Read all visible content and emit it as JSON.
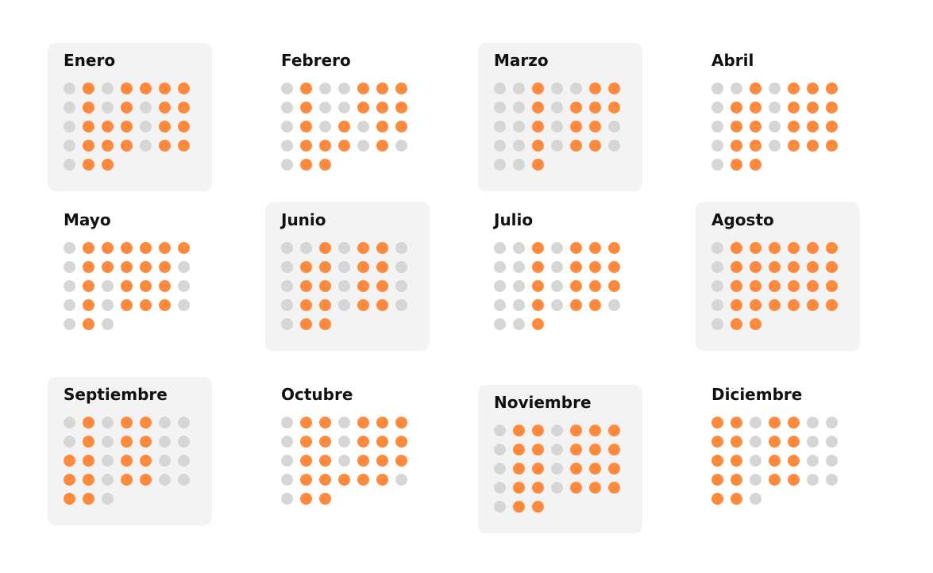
{
  "colors": {
    "active": "#ff8a3d",
    "inactive": "#d6d6d6",
    "panel": "#f3f3f3"
  },
  "months": [
    {
      "name": "Enero",
      "shaded": true,
      "rows": [
        "0101111",
        "0101011",
        "0111011",
        "0111011",
        "011"
      ]
    },
    {
      "name": "Febrero",
      "shaded": false,
      "rows": [
        "0100111",
        "0100111",
        "0101011",
        "0111010",
        "011"
      ]
    },
    {
      "name": "Marzo",
      "shaded": true,
      "rows": [
        "0010011",
        "0010111",
        "0010110",
        "0010110",
        "001"
      ]
    },
    {
      "name": "Abril",
      "shaded": false,
      "rows": [
        "0010111",
        "0110111",
        "0110111",
        "0110111",
        "011"
      ]
    },
    {
      "name": "Mayo",
      "shaded": false,
      "rows": [
        "0111111",
        "0111110",
        "0101110",
        "0101110",
        "010"
      ]
    },
    {
      "name": "Junio",
      "shaded": true,
      "rows": [
        "0010110",
        "0110110",
        "0110110",
        "0110110",
        "011"
      ]
    },
    {
      "name": "Julio",
      "shaded": false,
      "rows": [
        "0010111",
        "0010111",
        "0010111",
        "0010110",
        "001"
      ]
    },
    {
      "name": "Agosto",
      "shaded": true,
      "rows": [
        "0111111",
        "0111111",
        "0111111",
        "0111111",
        "011"
      ]
    },
    {
      "name": "Septiembre",
      "shaded": true,
      "rows": [
        "0101100",
        "0101100",
        "1101100",
        "1101100",
        "110"
      ]
    },
    {
      "name": "Octubre",
      "shaded": false,
      "rows": [
        "0110111",
        "0110111",
        "0110111",
        "0111110",
        "011"
      ]
    },
    {
      "name": "Noviembre",
      "shaded": true,
      "rows": [
        "0110111",
        "0110111",
        "0110111",
        "0110111",
        "011"
      ]
    },
    {
      "name": "Diciembre",
      "shaded": false,
      "rows": [
        "1101100",
        "1101100",
        "1101100",
        "1101100",
        "110"
      ]
    }
  ]
}
